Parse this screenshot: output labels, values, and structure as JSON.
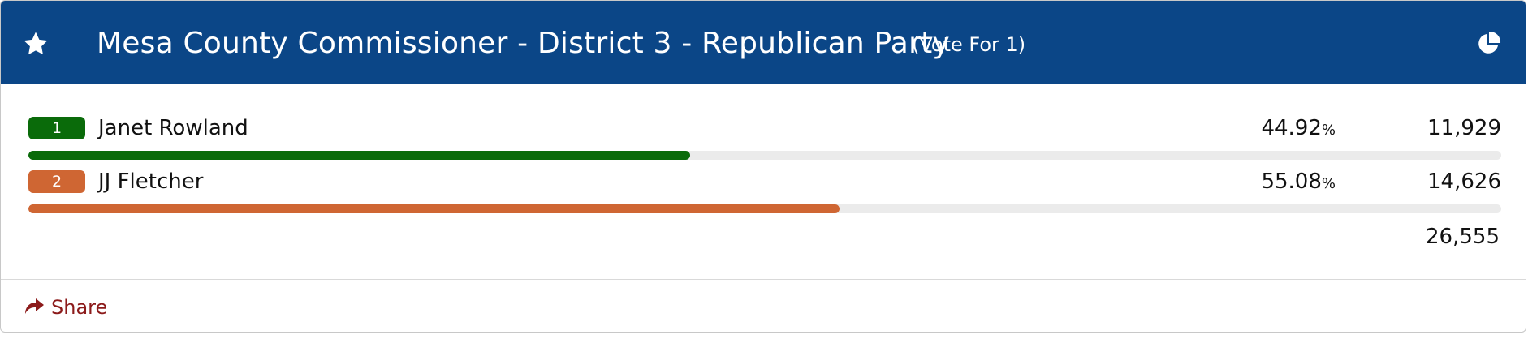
{
  "contest": {
    "title": "Mesa County Commissioner - District 3 - Republican Party",
    "vote_for": "(Vote For 1)",
    "header_color": "#0b4687"
  },
  "icons": {
    "favorite": "star-icon",
    "results_chart": "pie-chart-icon",
    "share": "share-arrow-icon"
  },
  "candidates": [
    {
      "rank": "1",
      "name": "Janet Rowland",
      "percent": "44.92",
      "percent_sign": "%",
      "votes": "11,929",
      "share": 0.4492,
      "color": "#0a6b0a"
    },
    {
      "rank": "2",
      "name": "JJ Fletcher",
      "percent": "55.08",
      "percent_sign": "%",
      "votes": "14,626",
      "share": 0.5508,
      "color": "#cf6633"
    }
  ],
  "total_votes": "26,555",
  "footer": {
    "share_label": "Share",
    "share_color": "#8c1b1b"
  }
}
